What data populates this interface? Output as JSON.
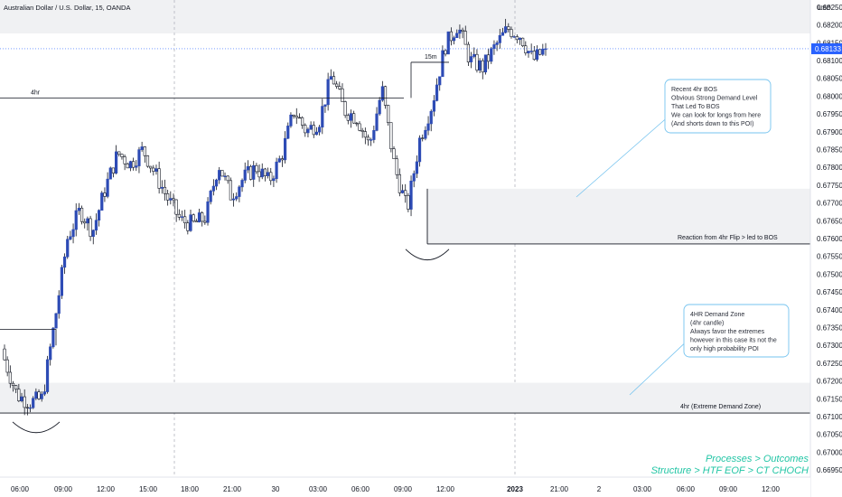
{
  "header": {
    "title": "Australian Dollar / U.S. Dollar, 15, OANDA"
  },
  "price_scale": {
    "currency": "USD",
    "current_price": "0.68133",
    "current_price_color": "#2962ff"
  },
  "colors": {
    "up": "#2d4bb5",
    "down": "#ffffff",
    "wick": "#131722",
    "zone_fill": "#f0f1f3",
    "zone_border": "#131722",
    "note_border": "#74c3ef",
    "footer": "#22c5a5"
  },
  "levels": [
    {
      "label": "4hr",
      "price": 0.67995
    },
    {
      "label": "15m",
      "price": 0.68095
    }
  ],
  "zones": [
    {
      "name": "reaction-zone",
      "top": 0.6774,
      "bottom": 0.67585,
      "label": "Reaction from 4hr Flip > led to BOS"
    },
    {
      "name": "extreme-demand-zone",
      "top": 0.67195,
      "bottom": 0.6711,
      "label": "4hr (Extreme Demand Zone)"
    }
  ],
  "notes": {
    "bos": [
      "Recent 4hr BOS",
      "Obvious Strong Demand Level",
      "That Led To BOS",
      "We can look for longs from here",
      "(And shorts down to this POI)"
    ],
    "demand": [
      "4HR Demand Zone",
      "(4hr candle)",
      "Always favor the extremes",
      "however in this case its not the",
      "only high probability POI"
    ]
  },
  "footer": {
    "line1": "Processes > Outcomes",
    "line2": "Structure > HTF EOF > CT CHOCH"
  },
  "chart_data": {
    "type": "candlestick",
    "title": "Australian Dollar / U.S. Dollar, 15, OANDA",
    "ylim": [
      0.6693,
      0.6827
    ],
    "y_ticks": [
      "0.68250",
      "0.68200",
      "0.68150",
      "0.68100",
      "0.68050",
      "0.68000",
      "0.67950",
      "0.67900",
      "0.67850",
      "0.67800",
      "0.67750",
      "0.67700",
      "0.67650",
      "0.67600",
      "0.67550",
      "0.67500",
      "0.67450",
      "0.67400",
      "0.67350",
      "0.67300",
      "0.67250",
      "0.67200",
      "0.67150",
      "0.67100",
      "0.67050",
      "0.67000",
      "0.66950"
    ],
    "x_ticks": [
      "06:00",
      "09:00",
      "12:00",
      "15:00",
      "18:00",
      "21:00",
      "30",
      "03:00",
      "06:00",
      "09:00",
      "12:00",
      "2023",
      "21:00",
      "2",
      "03:00",
      "06:00",
      "09:00",
      "12:00"
    ],
    "x_ticks_bold": [
      "2023"
    ],
    "candles_15m_ohlc_anchors": [
      [
        0.6729,
        0.6731,
        0.6724,
        0.6726
      ],
      [
        0.6726,
        0.6727,
        0.6713,
        0.6716
      ],
      [
        0.6716,
        0.6718,
        0.6712,
        0.6714
      ],
      [
        0.6714,
        0.6717,
        0.6711,
        0.6715
      ],
      [
        0.6715,
        0.6739,
        0.6714,
        0.6737
      ],
      [
        0.6737,
        0.6764,
        0.6735,
        0.676
      ],
      [
        0.676,
        0.677,
        0.6758,
        0.6768
      ],
      [
        0.6768,
        0.6769,
        0.6756,
        0.6762
      ],
      [
        0.6762,
        0.6776,
        0.676,
        0.6774
      ],
      [
        0.6774,
        0.6788,
        0.6772,
        0.6784
      ],
      [
        0.6784,
        0.6785,
        0.6778,
        0.6781
      ],
      [
        0.6781,
        0.6787,
        0.6779,
        0.6785
      ],
      [
        0.6785,
        0.6786,
        0.6776,
        0.6778
      ],
      [
        0.6778,
        0.6779,
        0.677,
        0.6771
      ],
      [
        0.6771,
        0.6773,
        0.676,
        0.6765
      ],
      [
        0.6765,
        0.677,
        0.6755,
        0.6764
      ],
      [
        0.6764,
        0.6768,
        0.676,
        0.6766
      ],
      [
        0.6766,
        0.6783,
        0.6765,
        0.6781
      ],
      [
        0.6781,
        0.6782,
        0.6768,
        0.6772
      ],
      [
        0.6772,
        0.6779,
        0.677,
        0.6777
      ],
      [
        0.6777,
        0.6782,
        0.6775,
        0.678
      ],
      [
        0.678,
        0.6781,
        0.6772,
        0.6776
      ],
      [
        0.6776,
        0.6785,
        0.6774,
        0.6783
      ],
      [
        0.6783,
        0.6798,
        0.6782,
        0.6796
      ],
      [
        0.6796,
        0.6799,
        0.6786,
        0.679
      ],
      [
        0.679,
        0.6796,
        0.6788,
        0.6793
      ],
      [
        0.6793,
        0.6808,
        0.6791,
        0.6806
      ],
      [
        0.6806,
        0.6807,
        0.6792,
        0.6796
      ],
      [
        0.6796,
        0.6799,
        0.679,
        0.6794
      ],
      [
        0.6794,
        0.6798,
        0.6782,
        0.6786
      ],
      [
        0.6786,
        0.6804,
        0.6784,
        0.6802
      ],
      [
        0.6802,
        0.6806,
        0.6776,
        0.678
      ],
      [
        0.678,
        0.6782,
        0.6762,
        0.6768
      ],
      [
        0.6768,
        0.679,
        0.6766,
        0.6788
      ],
      [
        0.6788,
        0.68,
        0.6786,
        0.6798
      ],
      [
        0.6798,
        0.6816,
        0.6797,
        0.6814
      ],
      [
        0.6814,
        0.6821,
        0.6808,
        0.682
      ],
      [
        0.682,
        0.6821,
        0.6806,
        0.681
      ],
      [
        0.681,
        0.6812,
        0.6805,
        0.6808
      ],
      [
        0.6808,
        0.6816,
        0.6807,
        0.6814
      ],
      [
        0.6814,
        0.6821,
        0.6812,
        0.6819
      ],
      [
        0.6819,
        0.6821,
        0.6815,
        0.6817
      ],
      [
        0.6817,
        0.6818,
        0.6808,
        0.681
      ],
      [
        0.681,
        0.6814,
        0.6809,
        0.68133
      ]
    ]
  }
}
